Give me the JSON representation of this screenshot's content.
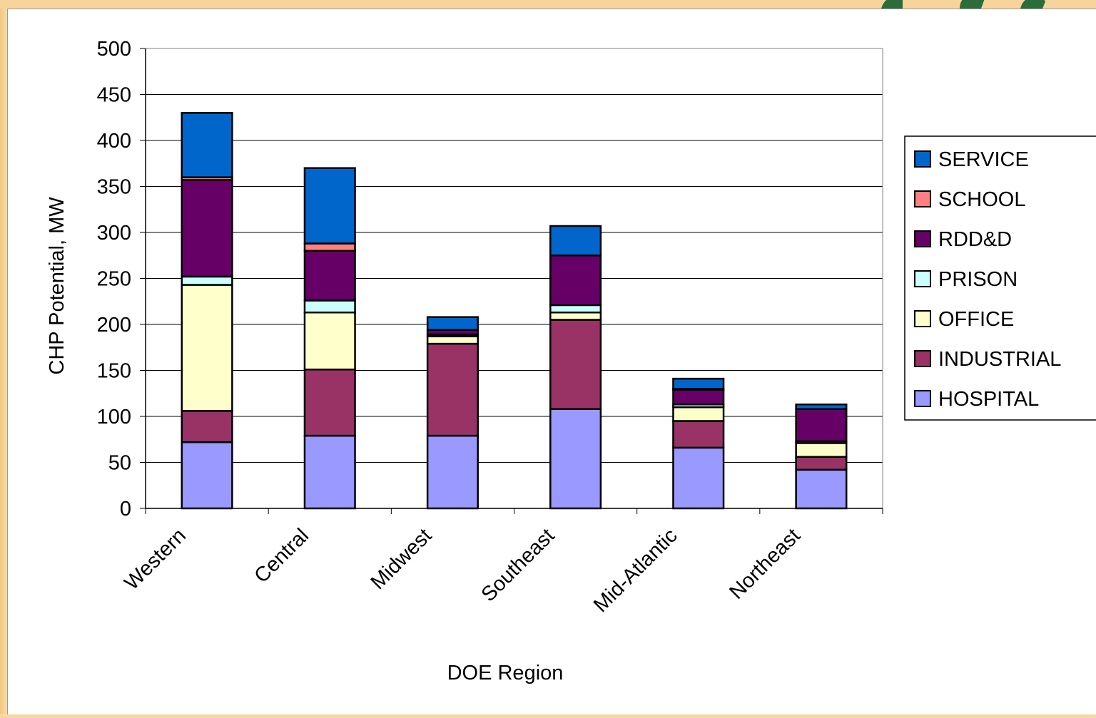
{
  "chart_data": {
    "type": "bar",
    "stacked": true,
    "title": "",
    "xlabel": "DOE Region",
    "ylabel": "CHP Potential, MW",
    "ylim": [
      0,
      500
    ],
    "yticks": [
      0,
      50,
      100,
      150,
      200,
      250,
      300,
      350,
      400,
      450,
      500
    ],
    "grid": true,
    "legend_position": "right",
    "categories": [
      "Western",
      "Central",
      "Midwest",
      "Southeast",
      "Mid-Atlantic",
      "Northeast"
    ],
    "series": [
      {
        "name": "HOSPITAL",
        "color": "#9999ff",
        "values": [
          72,
          79,
          79,
          108,
          66,
          42
        ]
      },
      {
        "name": "INDUSTRIAL",
        "color": "#993366",
        "values": [
          34,
          72,
          100,
          97,
          29,
          14
        ]
      },
      {
        "name": "OFFICE",
        "color": "#ffffcc",
        "values": [
          137,
          62,
          8,
          8,
          15,
          15
        ]
      },
      {
        "name": "PRISON",
        "color": "#ccffff",
        "values": [
          9,
          13,
          2,
          8,
          3,
          2
        ]
      },
      {
        "name": "RDD&D",
        "color": "#660066",
        "values": [
          105,
          54,
          5,
          54,
          16,
          35
        ]
      },
      {
        "name": "SCHOOL",
        "color": "#ff8080",
        "values": [
          3,
          8,
          0,
          0,
          1,
          0
        ]
      },
      {
        "name": "SERVICE",
        "color": "#0066cc",
        "values": [
          70,
          82,
          14,
          32,
          11,
          5
        ]
      }
    ]
  }
}
